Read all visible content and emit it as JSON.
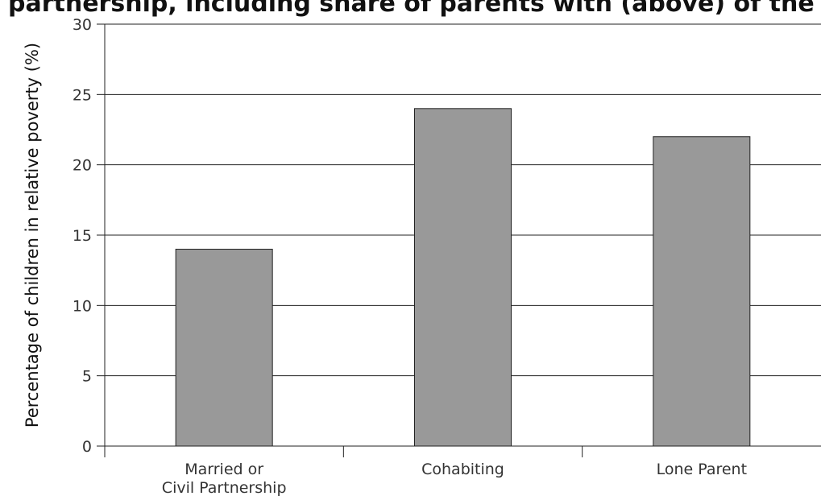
{
  "chart_data": {
    "type": "bar",
    "title": "partnership, including share of parents with (above) of the",
    "ylabel": "Percentage of children in relative poverty (%)",
    "xlabel": "",
    "categories": [
      [
        "Married or",
        "Civil Partnership"
      ],
      [
        "Cohabiting"
      ],
      [
        "Lone Parent"
      ]
    ],
    "values": [
      14,
      24,
      22
    ],
    "ylim": [
      0,
      30
    ],
    "yticks": [
      "0",
      "5",
      "10",
      "15",
      "20",
      "25",
      "30"
    ],
    "ytick_values": [
      0,
      5,
      10,
      15,
      20,
      25,
      30
    ],
    "grid": "horizontal",
    "legend": "none",
    "colors": {
      "bar_fill": "#999999",
      "bar_stroke": "#222222",
      "axis": "#222222",
      "grid": "#222222",
      "text": "#333333"
    }
  }
}
